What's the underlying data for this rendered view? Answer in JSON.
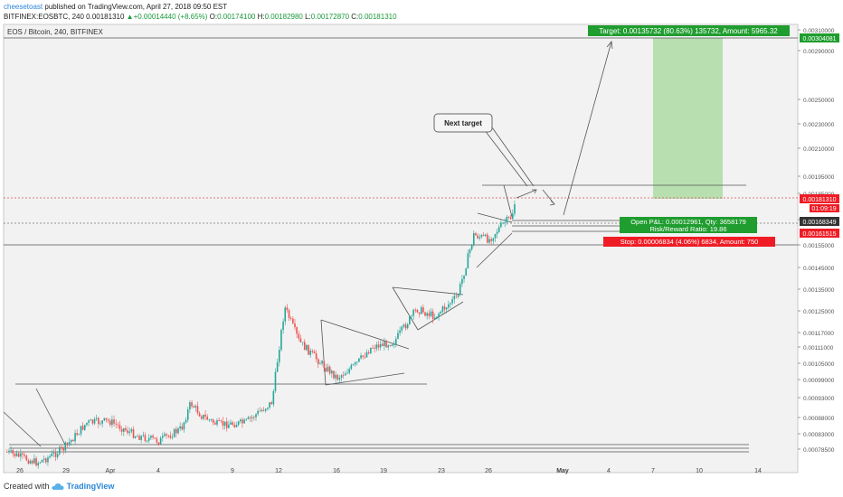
{
  "header": {
    "user": "cheesetoast",
    "published": "published on TradingView.com, April 27, 2018 09:50 EST",
    "symbol": "BITFINEX:EOSBTC, 240",
    "price": "0.00181310",
    "arrow": "▲",
    "change": "+0.00014440 (+8.65%)",
    "o_label": "O:",
    "o": "0.00174100",
    "h_label": "H:",
    "h": "0.00182980",
    "l_label": "L:",
    "l": "0.00172870",
    "c_label": "C:",
    "c": "0.00181310"
  },
  "legend": {
    "title": "EOS / Bitcoin, 240, BITFINEX"
  },
  "footer": {
    "created": "Created with",
    "brand": "TradingView",
    "logo_icon": "tradingview-cloud-icon"
  },
  "colors": {
    "up": "#26a69a",
    "down": "#ef5350",
    "bull_box": "#b7dfb0",
    "target_green": "#1f9d2f",
    "stop_red": "#ef1c25",
    "bg": "#f2f2f2",
    "line": "#555555"
  },
  "chart_data": {
    "type": "candlestick",
    "title": "EOS / Bitcoin, 240, BITFINEX",
    "y_axis": {
      "ticks": [
        "0.00310000",
        "0.00290000",
        "0.00250000",
        "0.00230000",
        "0.00210000",
        "0.00195000",
        "0.00185000",
        "0.00165000",
        "0.00155000",
        "0.00145000",
        "0.00135000",
        "0.00125000",
        "0.00117000",
        "0.00111000",
        "0.00105000",
        "0.00099000",
        "0.00093000",
        "0.00088000",
        "0.00083000",
        "0.00078500"
      ]
    },
    "x_axis": {
      "ticks": [
        "26",
        "29",
        "Apr",
        "4",
        "9",
        "12",
        "16",
        "19",
        "23",
        "26",
        "May",
        "4",
        "7",
        "10",
        "14"
      ],
      "bold_ticks": [
        "May"
      ]
    },
    "price_badges": [
      {
        "label": "0.00304081",
        "kind": "target"
      },
      {
        "label": "0.00181310",
        "kind": "current"
      },
      {
        "label": "01:09:19",
        "kind": "countdown"
      },
      {
        "label": "0.00168349",
        "kind": "entry"
      },
      {
        "label": "0.00161515",
        "kind": "stop"
      }
    ],
    "position": {
      "target_label": "Target: 0.00135732 (80.63%) 135732, Amount: 5965.32",
      "pnl_label": "Open P&L: 0.00012961, Qty: 3658179",
      "rr_label": "Risk/Reward Ratio: 19.86",
      "stop_label": "Stop: 0.00006834 (4.06%) 6834, Amount: 750"
    },
    "annotations": [
      {
        "text": "Next target"
      }
    ],
    "price_range": [
      "0.000785",
      "0.00181310"
    ]
  }
}
